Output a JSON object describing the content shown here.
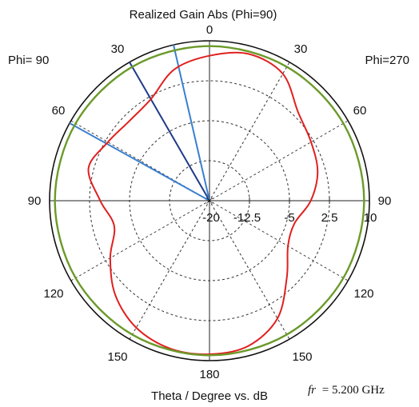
{
  "chart_data": {
    "type": "polar",
    "title": "Realized Gain Abs (Phi=90)",
    "left_label": "Phi= 90",
    "right_label": "Phi=270",
    "xlabel": "Theta / Degree vs. dB",
    "frequency_label": "fr = 5.200 GHz",
    "frequency_symbol": "fr",
    "frequency_value": "= 5.200 GHz",
    "radial_range": [
      -20,
      10
    ],
    "radial_ticks": [
      "-20",
      "-12.5",
      "-5",
      "2.5",
      "10"
    ],
    "angle_labels": {
      "top": "0",
      "upper_left": "30",
      "upper_right": "30",
      "mid_upper_left": "60",
      "mid_upper_right": "60",
      "left": "90",
      "right": "90",
      "mid_lower_left": "120",
      "mid_lower_right": "120",
      "lower_left": "150",
      "lower_right": "150",
      "bottom": "180"
    },
    "series": [
      {
        "color": "#e02020",
        "theta_deg": [
          0,
          15,
          30,
          45,
          60,
          75,
          90,
          105,
          120,
          135,
          150,
          165,
          180,
          195,
          210,
          225,
          240,
          255,
          270,
          285,
          300,
          315,
          330,
          345,
          360
        ],
        "gain_db": [
          7.2,
          5.5,
          2.0,
          1.2,
          2.0,
          3.5,
          0.5,
          -1.5,
          1.5,
          5.0,
          7.5,
          8.7,
          8.8,
          8.2,
          5.5,
          0.5,
          -3.0,
          -3.5,
          -1.0,
          1.0,
          2.0,
          3.5,
          7.5,
          8.5,
          7.2
        ]
      },
      {
        "color": "#6b9a2a",
        "theta_deg": [
          0,
          30,
          60,
          90,
          120,
          150,
          180,
          210,
          240,
          270,
          300,
          330,
          360
        ],
        "gain_db": [
          9.0,
          9.0,
          9.0,
          9.0,
          9.0,
          9.0,
          9.0,
          9.0,
          9.0,
          9.0,
          9.0,
          9.0,
          9.0
        ]
      }
    ],
    "markers": [
      {
        "theta_deg": 30,
        "gain_db": 10,
        "color": "#1f3a8a"
      },
      {
        "theta_deg": 61,
        "gain_db": 10,
        "color": "#3a7fd0"
      },
      {
        "theta_deg": 13,
        "gain_db": 10,
        "color": "#3a7fd0"
      }
    ],
    "grid": true
  }
}
